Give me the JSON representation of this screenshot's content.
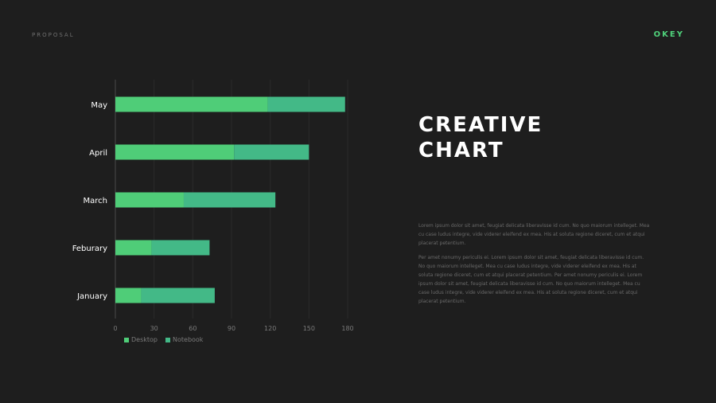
{
  "header": {
    "left_label": "PROPOSAL",
    "brand": "OKEY",
    "brand_color": "#4fd07a"
  },
  "title": {
    "line1": "CREATIVE",
    "line2": "CHART"
  },
  "body": {
    "paragraph1": "Lorem ipsum dolor sit amet, feugiat delicata liberavisse id cum. No quo maiorum intelleget. Mea cu case ludus integre, vide viderer eleifend ex mea. His at soluta regione diceret, cum et atqui placerat petentium.",
    "paragraph2": "Per amet nonumy periculis ei. Lorem ipsum dolor sit amet, feugiat delicata liberavisse id cum. No quo maiorum intelleget. Mea cu case ludus integre, vide viderer eleifend ex mea. His at soluta regione diceret, cum et atqui placerat petentium. Per amet nonumy periculis ei. Lorem ipsum dolor sit amet, feugiat delicata liberavisse id cum. No quo maiorum intelleget. Mea cu case ludus integre, vide viderer eleifend ex mea. His at soluta regione diceret, cum et atqui placerat petentium."
  },
  "chart_data": {
    "type": "bar",
    "orientation": "horizontal",
    "stacked": true,
    "categories": [
      "January",
      "Feburary",
      "March",
      "April",
      "May"
    ],
    "series": [
      {
        "name": "Desktop",
        "color": "#4fcd78",
        "values": [
          20,
          28,
          53,
          92,
          118
        ]
      },
      {
        "name": "Notebook",
        "color": "#43b987",
        "values": [
          57,
          45,
          71,
          58,
          60
        ]
      }
    ],
    "xticks": [
      0,
      30,
      60,
      90,
      120,
      150,
      180
    ],
    "xlim": [
      0,
      180
    ],
    "grid": true,
    "legend_position": "bottom-left"
  }
}
